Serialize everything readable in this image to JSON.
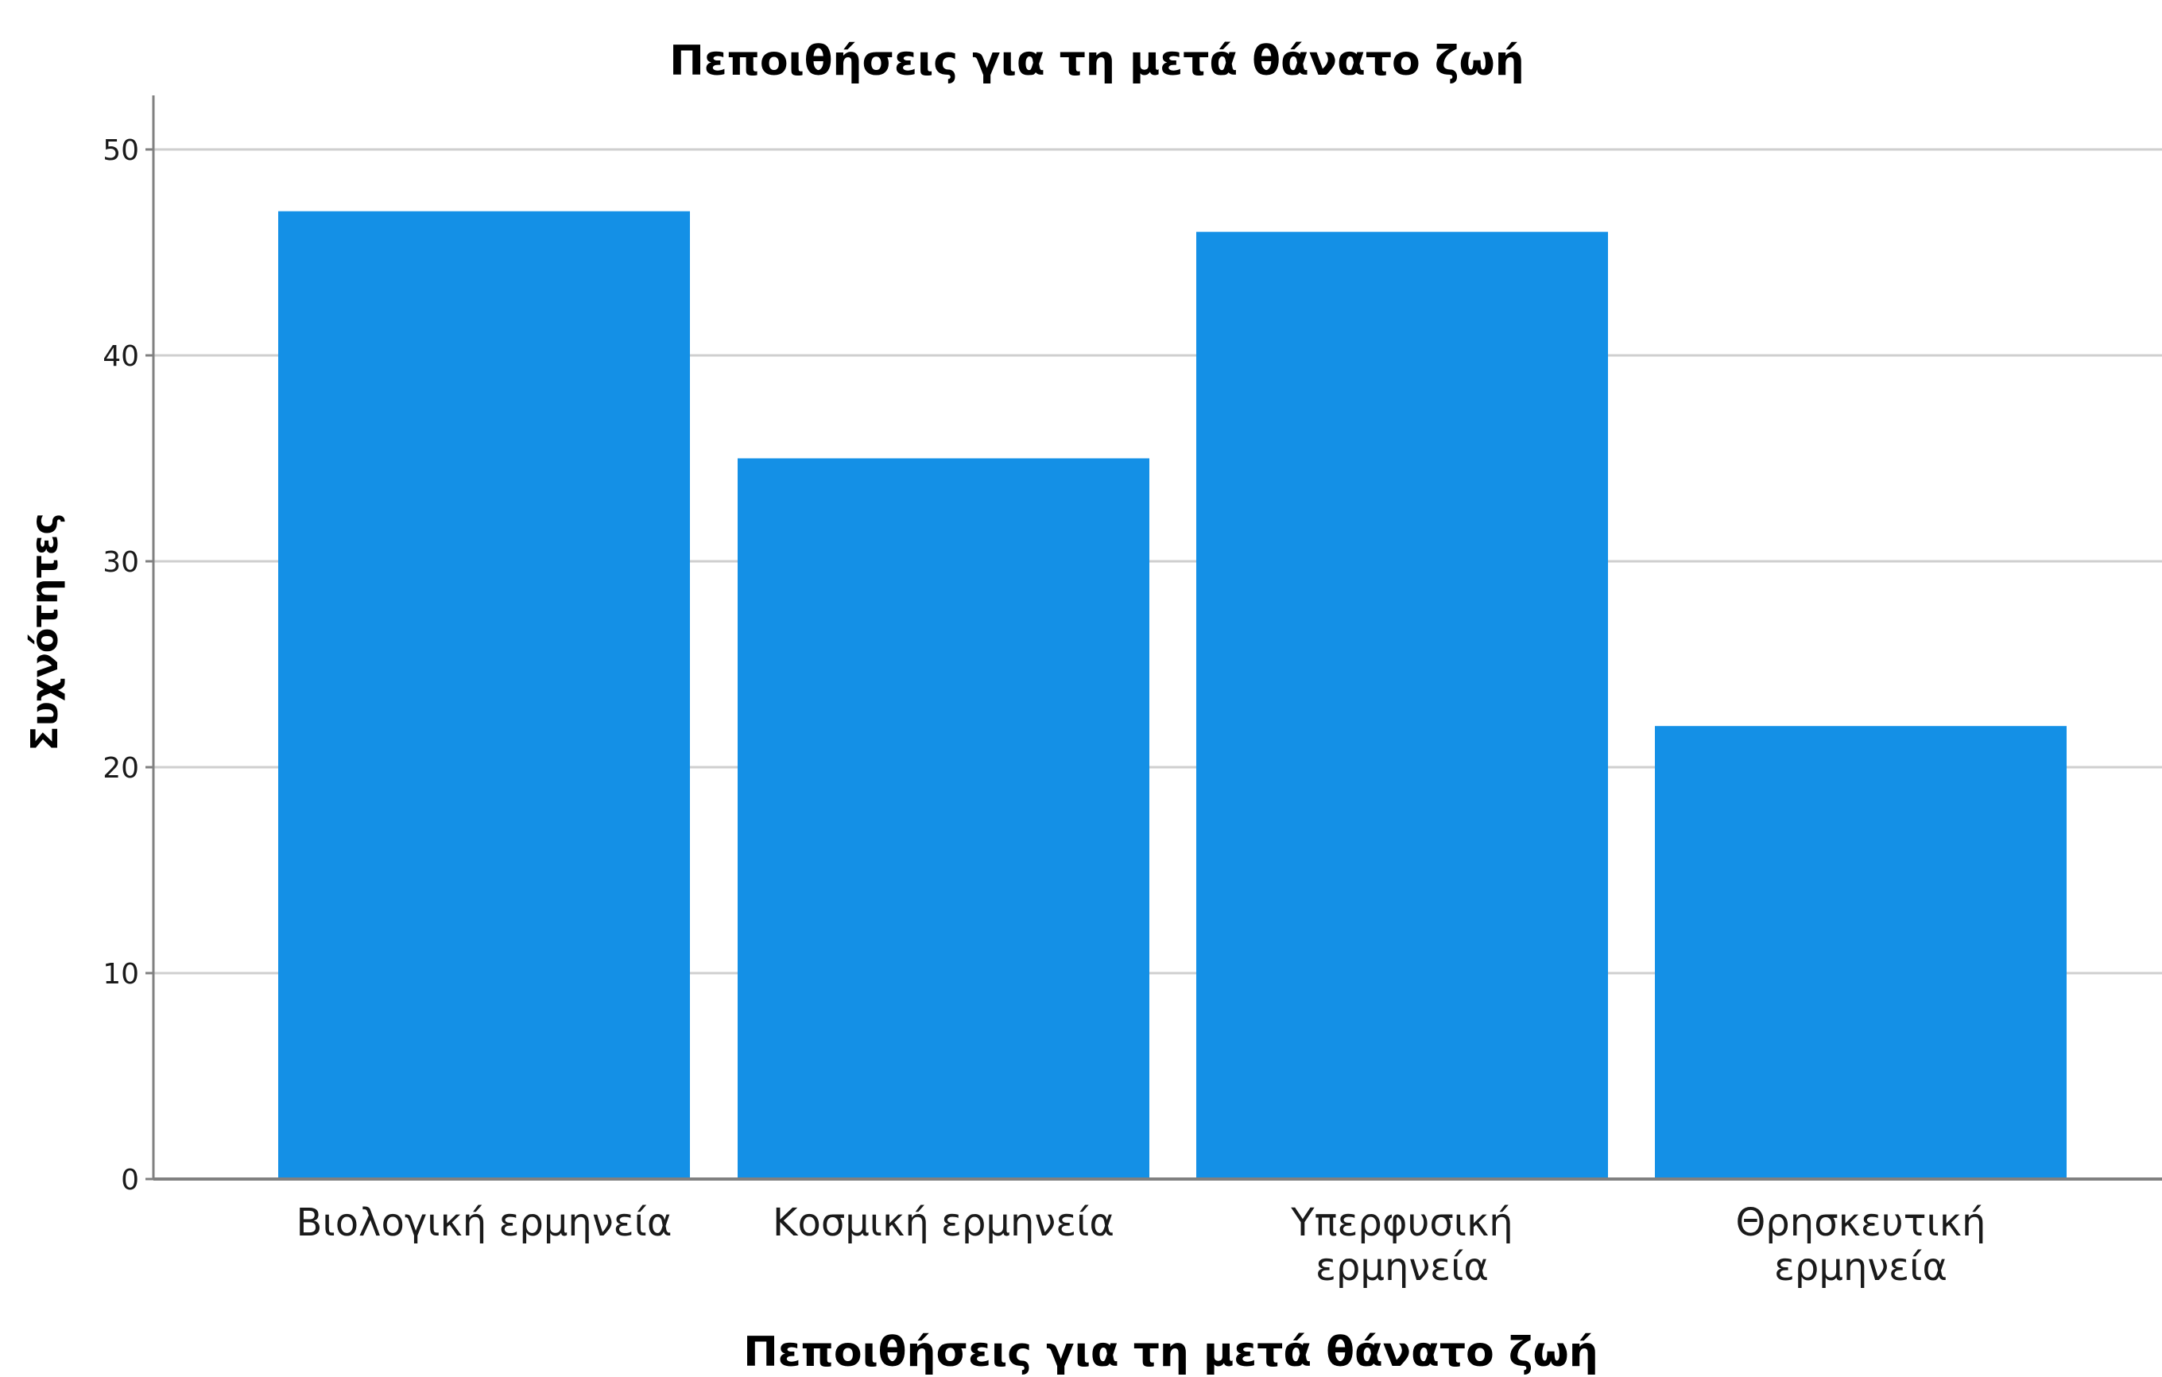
{
  "chart_data": {
    "type": "bar",
    "title": "Πεποιθήσεις για τη μετά θάνατο ζωή",
    "xlabel": "Πεποιθήσεις για τη μετά θάνατο ζωή",
    "ylabel": "Συχνότητες",
    "categories": [
      [
        "Βιολογική ερμηνεία"
      ],
      [
        "Κοσμική ερμηνεία"
      ],
      [
        "Υπερφυσική",
        "ερμηνεία"
      ],
      [
        "Θρησκευτική",
        "ερμηνεία"
      ]
    ],
    "values": [
      47,
      35,
      46,
      22
    ],
    "ylim": [
      0,
      50
    ],
    "yticks": [
      0,
      10,
      20,
      30,
      40,
      50
    ],
    "grid": true,
    "bar_color": "#1490E6",
    "grid_color": "#CFCFCF",
    "axis_color": "#808080"
  }
}
